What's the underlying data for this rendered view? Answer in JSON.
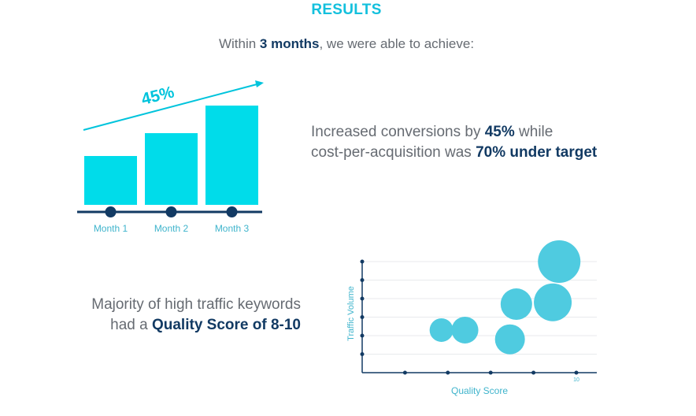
{
  "header": {
    "title": "RESULTS",
    "intro_prefix": "Within ",
    "intro_bold": "3 months",
    "intro_suffix": ", we were able to achieve:"
  },
  "stat_conversions": {
    "part1": "Increased conversions by ",
    "bold1": "45%",
    "part2": " while",
    "part3": "cost-per-acquisition was ",
    "bold2": "70% under target"
  },
  "stat_quality": {
    "line1": "Majority of high traffic keywords",
    "line2_prefix": "had a ",
    "line2_bold": "Quality Score of 8-10"
  },
  "colors": {
    "accent": "#00dcea",
    "bubble": "#4fcbe0",
    "navy": "#123a63",
    "label_teal": "#3fb4cc"
  },
  "chart_data": [
    {
      "type": "bar",
      "categories": [
        "Month 1",
        "Month 2",
        "Month 3"
      ],
      "values": [
        62,
        91,
        126
      ],
      "trend_label": "45%",
      "title": "",
      "xlabel": "",
      "ylabel": ""
    },
    {
      "type": "scatter",
      "xlabel": "Quality Score",
      "ylabel": "Traffic Volume",
      "xlim": [
        0,
        10
      ],
      "ylim": [
        0,
        6
      ],
      "x_tick_labels": [
        "10"
      ],
      "grid": true,
      "points": [
        {
          "x": 3.7,
          "y": 2.3,
          "size": 15
        },
        {
          "x": 4.8,
          "y": 2.3,
          "size": 17
        },
        {
          "x": 6.9,
          "y": 1.8,
          "size": 19
        },
        {
          "x": 7.2,
          "y": 3.7,
          "size": 20
        },
        {
          "x": 8.9,
          "y": 3.8,
          "size": 24
        },
        {
          "x": 9.2,
          "y": 6.0,
          "size": 27
        }
      ]
    }
  ]
}
